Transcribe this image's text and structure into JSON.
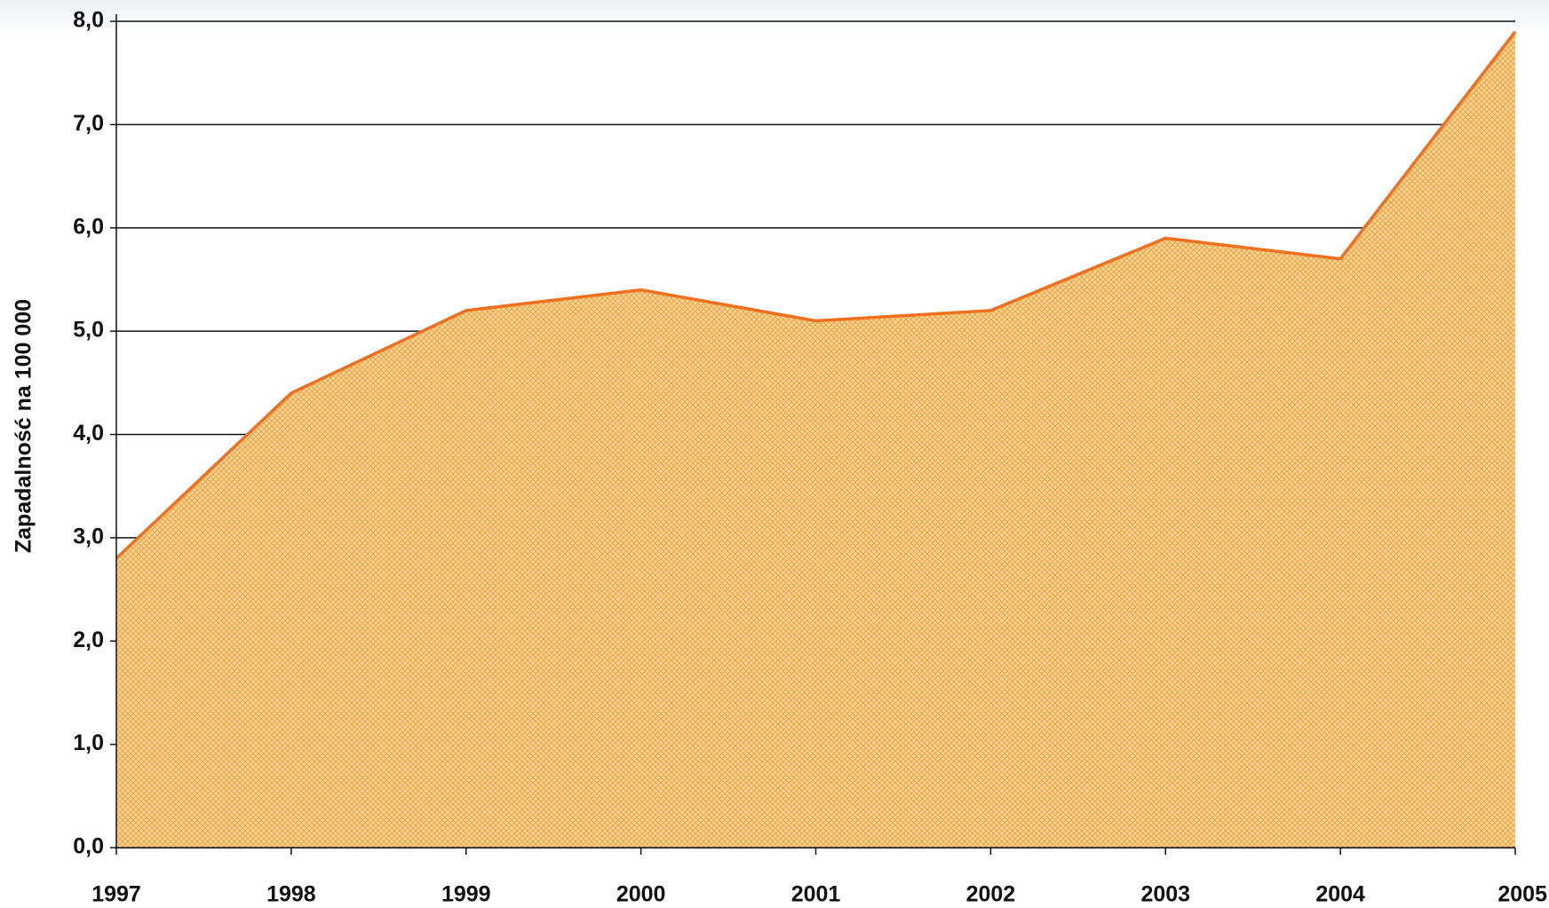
{
  "chart_data": {
    "type": "area",
    "y_label": "Zapadalność na 100 000",
    "categories": [
      "1997",
      "1998",
      "1999",
      "2000",
      "2001",
      "2002",
      "2003",
      "2004",
      "2005"
    ],
    "series": [
      {
        "name": "Zapadalność",
        "color": "#f07020",
        "values": [
          2.8,
          4.4,
          5.2,
          5.4,
          5.1,
          5.2,
          5.9,
          5.7,
          7.9
        ]
      }
    ],
    "ylim": [
      0,
      8
    ],
    "yticks": [
      {
        "value": 0,
        "label": "0,0"
      },
      {
        "value": 1,
        "label": "1,0"
      },
      {
        "value": 2,
        "label": "2,0"
      },
      {
        "value": 3,
        "label": "3,0"
      },
      {
        "value": 4,
        "label": "4,0"
      },
      {
        "value": 5,
        "label": "5,0"
      },
      {
        "value": 6,
        "label": "6,0"
      },
      {
        "value": 7,
        "label": "7,0"
      },
      {
        "value": 8,
        "label": "8,0"
      }
    ],
    "grid": true
  }
}
